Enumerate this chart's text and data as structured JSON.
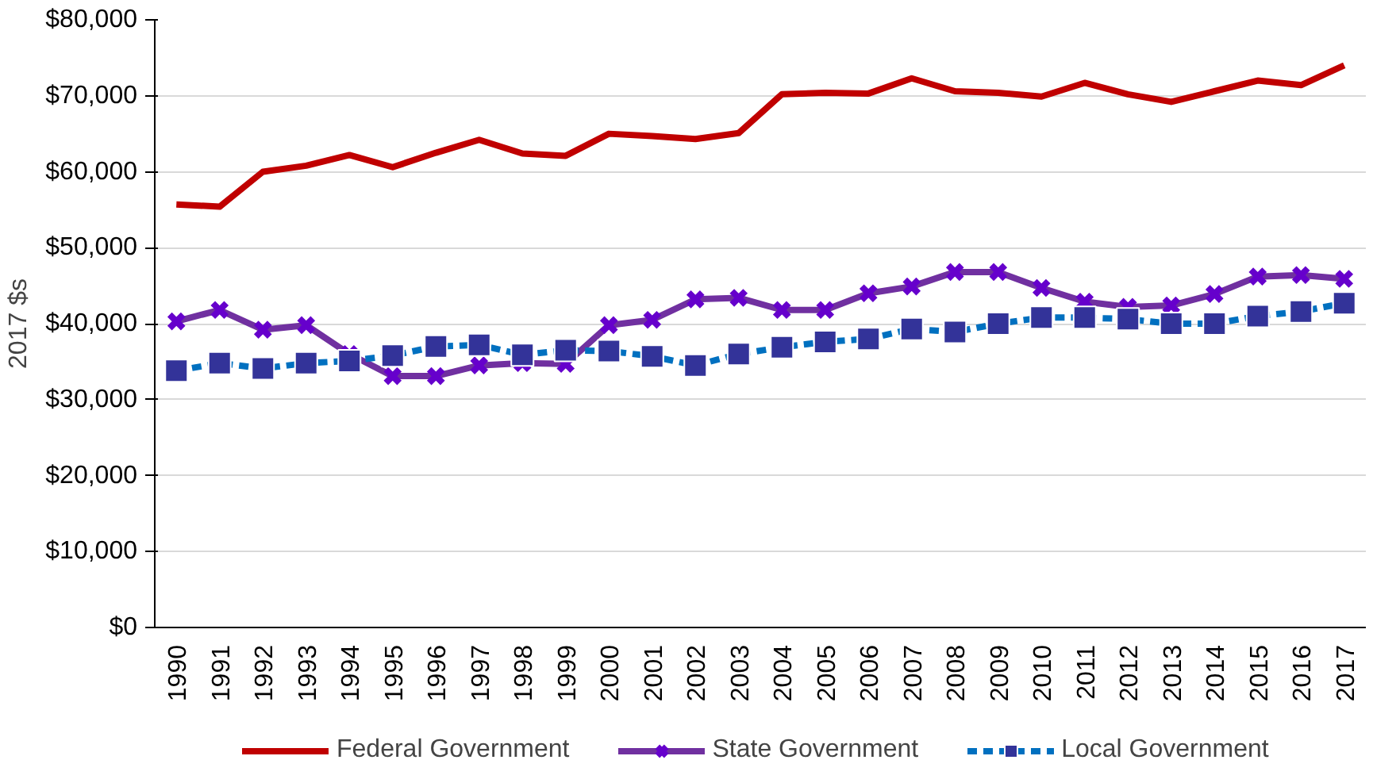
{
  "chart_data": {
    "type": "line",
    "ylabel": "2017 $s",
    "categories": [
      "1990",
      "1991",
      "1992",
      "1993",
      "1994",
      "1995",
      "1996",
      "1997",
      "1998",
      "1999",
      "2000",
      "2001",
      "2002",
      "2003",
      "2004",
      "2005",
      "2006",
      "2007",
      "2008",
      "2009",
      "2010",
      "2011",
      "2012",
      "2013",
      "2014",
      "2015",
      "2016",
      "2017"
    ],
    "ylim": [
      0,
      80000
    ],
    "yticks": [
      {
        "value": 0,
        "label": "$0"
      },
      {
        "value": 10000,
        "label": "$10,000"
      },
      {
        "value": 20000,
        "label": "$20,000"
      },
      {
        "value": 30000,
        "label": "$30,000"
      },
      {
        "value": 40000,
        "label": "$40,000"
      },
      {
        "value": 50000,
        "label": "$50,000"
      },
      {
        "value": 60000,
        "label": "$60,000"
      },
      {
        "value": 70000,
        "label": "$70,000"
      },
      {
        "value": 80000,
        "label": "$80,000"
      }
    ],
    "grid": "y",
    "legend": "bottom",
    "series": [
      {
        "name": "Federal Government",
        "color": "#c00000",
        "marker": "none",
        "line_style": "solid",
        "values": [
          55700,
          55400,
          60000,
          60800,
          62200,
          60600,
          62500,
          64200,
          62400,
          62100,
          65000,
          64700,
          64300,
          65100,
          70200,
          70400,
          70300,
          72300,
          70600,
          70400,
          69900,
          71700,
          70200,
          69200,
          70600,
          72000,
          71400,
          74000
        ]
      },
      {
        "name": "State Government",
        "color": "#7030a0",
        "marker": "cross",
        "line_style": "solid",
        "values": [
          40300,
          41800,
          39200,
          39800,
          36000,
          33100,
          33100,
          34500,
          34800,
          34700,
          39800,
          40500,
          43200,
          43400,
          41800,
          41800,
          44000,
          44900,
          46800,
          46800,
          44700,
          42900,
          42200,
          42400,
          43900,
          46200,
          46400,
          45900
        ]
      },
      {
        "name": "Local Government",
        "color": "#0070c0",
        "marker": "square",
        "line_style": "dashed",
        "values": [
          33800,
          34800,
          34100,
          34800,
          35100,
          35800,
          37000,
          37200,
          35900,
          36500,
          36400,
          35700,
          34500,
          36000,
          36900,
          37600,
          38000,
          39300,
          38900,
          40000,
          40800,
          40800,
          40600,
          40000,
          40000,
          41000,
          41600,
          42700
        ]
      }
    ]
  }
}
